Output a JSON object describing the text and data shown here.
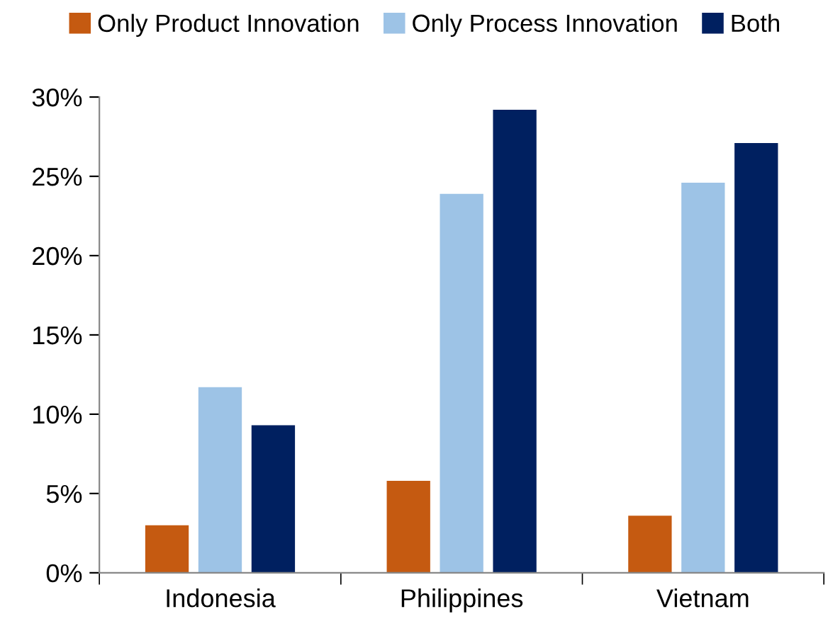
{
  "chart_data": {
    "type": "bar",
    "categories": [
      "Indonesia",
      "Philippines",
      "Vietnam"
    ],
    "series": [
      {
        "name": "Only Product Innovation",
        "color": "#c55a11",
        "values": [
          3.0,
          5.8,
          3.6
        ]
      },
      {
        "name": "Only Process Innovation",
        "color": "#9dc3e6",
        "values": [
          11.7,
          23.9,
          24.6
        ]
      },
      {
        "name": "Both",
        "color": "#002060",
        "values": [
          9.3,
          29.2,
          27.1
        ]
      }
    ],
    "ylim": [
      0,
      30
    ],
    "yticks": [
      {
        "value": 0,
        "label": "0%"
      },
      {
        "value": 5,
        "label": "5%"
      },
      {
        "value": 10,
        "label": "10%"
      },
      {
        "value": 15,
        "label": "15%"
      },
      {
        "value": 20,
        "label": "20%"
      },
      {
        "value": 25,
        "label": "25%"
      },
      {
        "value": 30,
        "label": "30%"
      }
    ],
    "grid": false,
    "legend": "top"
  }
}
